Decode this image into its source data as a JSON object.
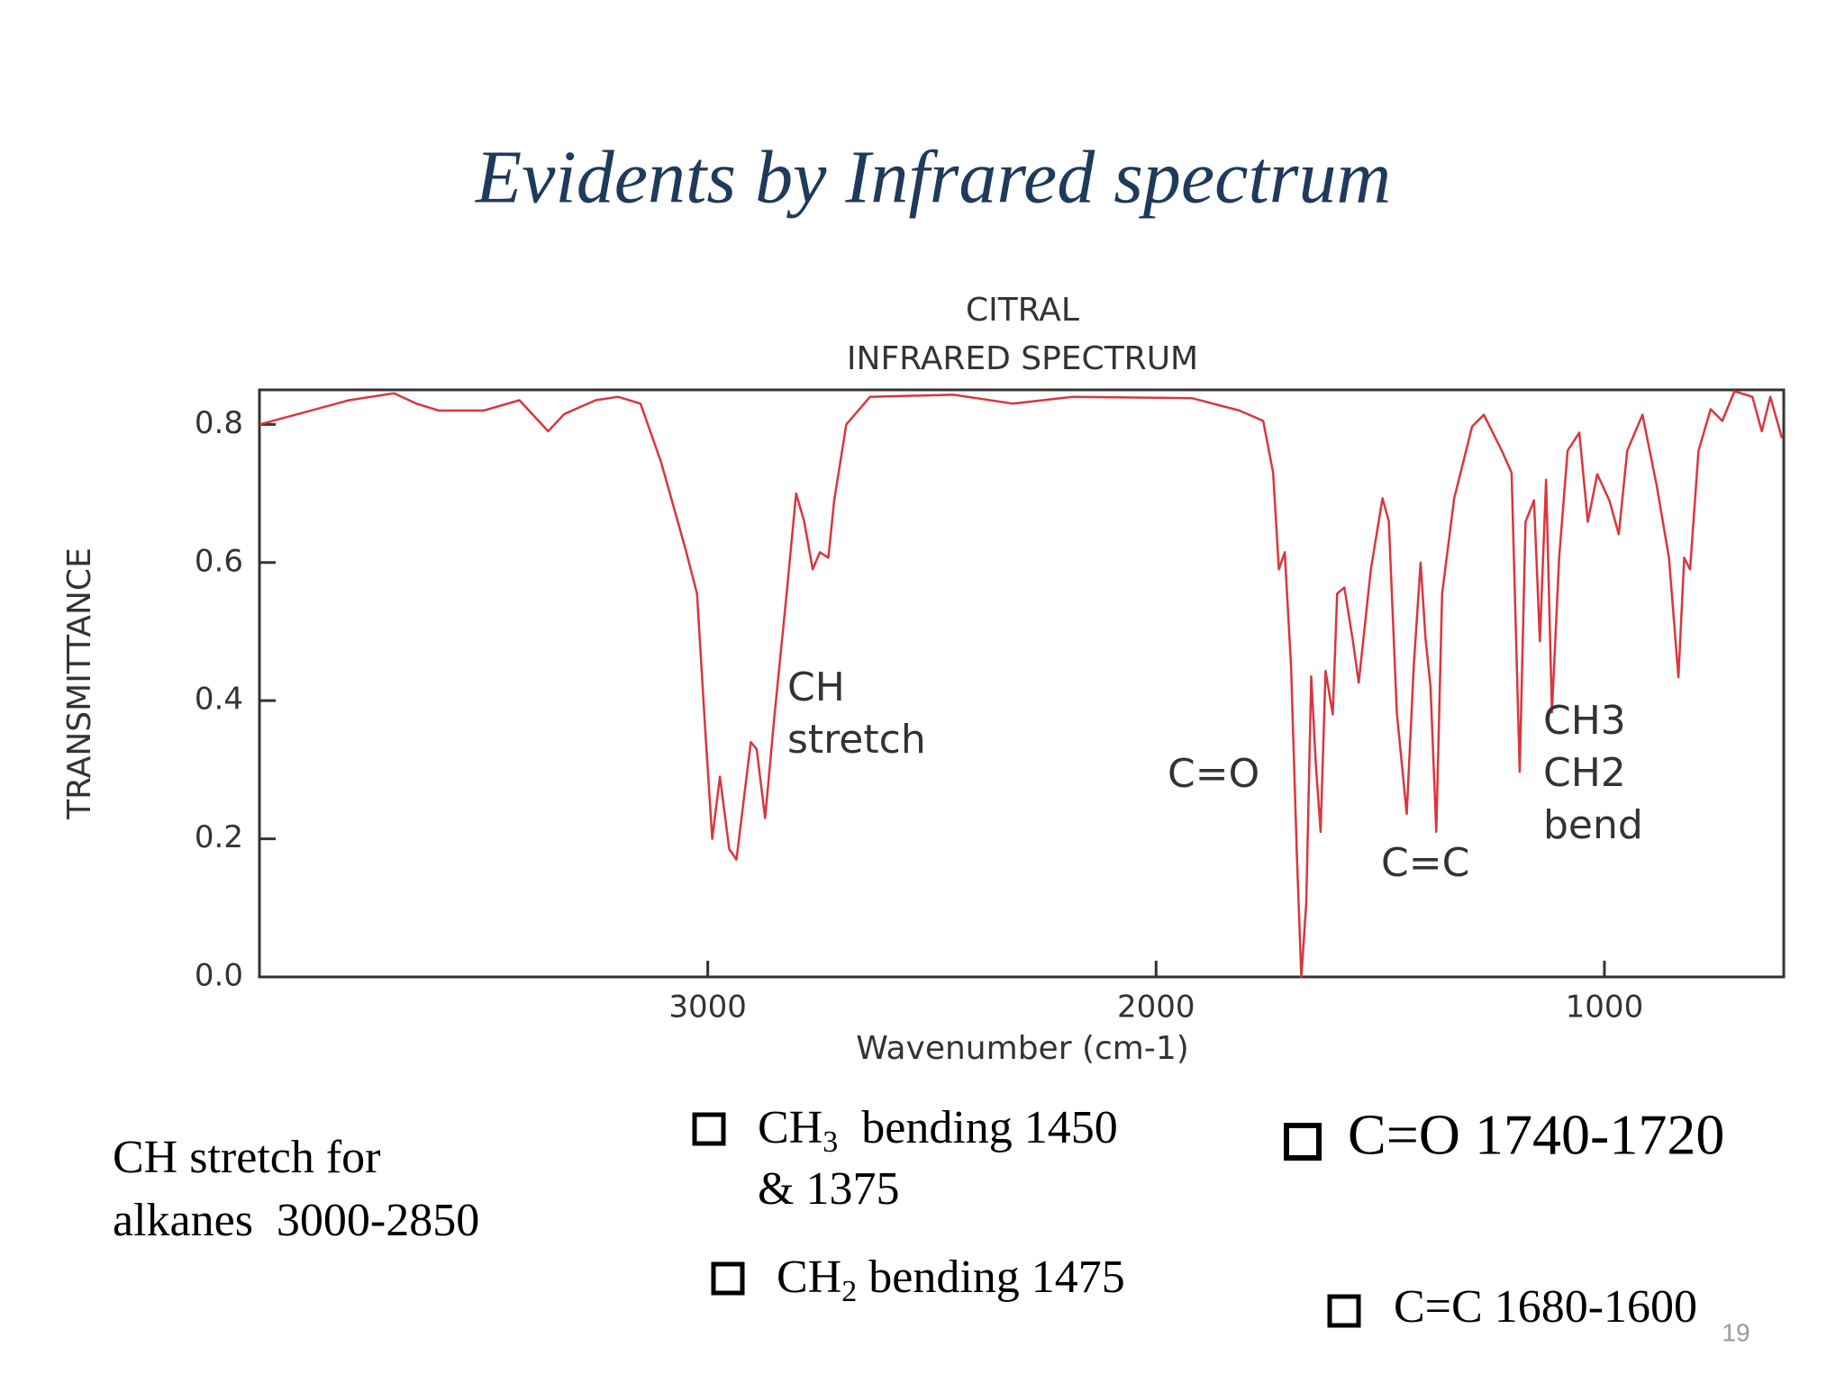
{
  "slide": {
    "title": "Evidents by Infrared spectrum",
    "note_lines": [
      "CH stretch for",
      "alkanes  3000-2850"
    ],
    "bullet_1": {
      "pre": "CH",
      "sub": "3",
      "post": "  bending 1450",
      "line2": "& 1375"
    },
    "bullet_2": {
      "pre": "CH",
      "sub": "2",
      "post": " bending 1475"
    },
    "bullet_3": "C=O 1740-1720",
    "bullet_4": "C=C 1680-1600",
    "page_number": "19"
  },
  "chart_data": {
    "type": "line",
    "title": "CITRAL",
    "subtitle": "INFRARED SPECTRUM",
    "x_label": "Wavenumber (cm-1)",
    "y_label": "TRANSMITTANCE",
    "color": "#d9363e",
    "xlim": [
      4000,
      600
    ],
    "ylim": [
      0,
      0.85
    ],
    "xticks": [
      3000,
      2000,
      1000
    ],
    "yticks": [
      {
        "value": 0,
        "label": "0.0"
      },
      0.2,
      0.4,
      0.6,
      0.8
    ],
    "grid": false,
    "annotations": [
      [
        "CH",
        "stretch"
      ],
      [
        "C=O"
      ],
      [
        "C=C"
      ],
      [
        "CH3",
        "CH2",
        "bend"
      ]
    ],
    "x": [
      4000,
      3800,
      3700,
      3650,
      3600,
      3500,
      3420,
      3356,
      3320,
      3250,
      3200,
      3150,
      3104,
      3050,
      3024,
      3005,
      2990,
      2973,
      2952,
      2936,
      2904,
      2891,
      2872,
      2851,
      2824,
      2803,
      2785,
      2766,
      2750,
      2731,
      2718,
      2691,
      2638,
      2452,
      2319,
      2186,
      1920,
      1814,
      1761,
      1739,
      1726,
      1713,
      1699,
      1686,
      1676,
      1665,
      1654,
      1644,
      1633,
      1622,
      1606,
      1596,
      1580,
      1561,
      1548,
      1521,
      1495,
      1481,
      1463,
      1441,
      1425,
      1410,
      1399,
      1388,
      1375,
      1362,
      1335,
      1295,
      1269,
      1229,
      1207,
      1189,
      1176,
      1157,
      1144,
      1130,
      1117,
      1101,
      1082,
      1056,
      1037,
      1016,
      989,
      968,
      949,
      915,
      883,
      856,
      835,
      822,
      809,
      790,
      763,
      737,
      710,
      670,
      649,
      630,
      604
    ],
    "values": [
      0.8,
      0.835,
      0.845,
      0.83,
      0.82,
      0.82,
      0.835,
      0.79,
      0.815,
      0.835,
      0.84,
      0.83,
      0.745,
      0.62,
      0.555,
      0.35,
      0.2,
      0.29,
      0.185,
      0.17,
      0.34,
      0.33,
      0.23,
      0.38,
      0.555,
      0.7,
      0.66,
      0.59,
      0.615,
      0.607,
      0.69,
      0.8,
      0.84,
      0.843,
      0.83,
      0.84,
      0.838,
      0.82,
      0.805,
      0.73,
      0.59,
      0.615,
      0.45,
      0.175,
      0.0,
      0.107,
      0.435,
      0.31,
      0.21,
      0.443,
      0.38,
      0.555,
      0.564,
      0.486,
      0.426,
      0.59,
      0.693,
      0.66,
      0.383,
      0.236,
      0.452,
      0.6,
      0.49,
      0.42,
      0.21,
      0.555,
      0.693,
      0.797,
      0.814,
      0.762,
      0.73,
      0.297,
      0.659,
      0.69,
      0.486,
      0.72,
      0.383,
      0.607,
      0.762,
      0.788,
      0.659,
      0.728,
      0.69,
      0.641,
      0.762,
      0.814,
      0.71,
      0.607,
      0.434,
      0.607,
      0.59,
      0.762,
      0.822,
      0.805,
      0.848,
      0.84,
      0.79,
      0.84,
      0.78
    ]
  }
}
